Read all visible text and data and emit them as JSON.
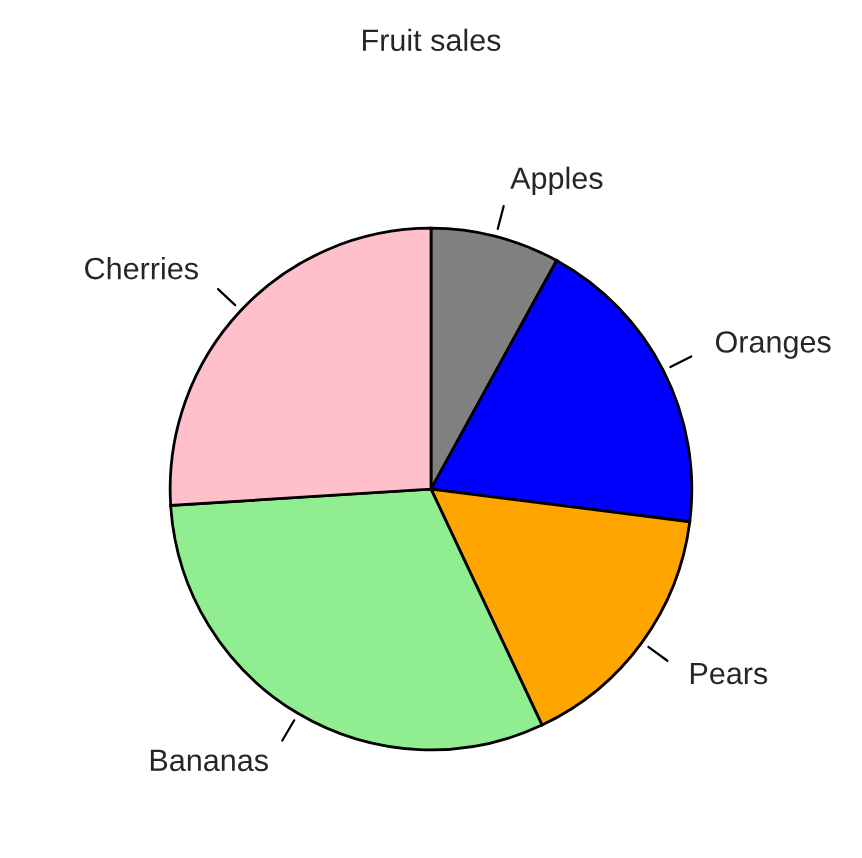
{
  "chart_data": {
    "type": "pie",
    "title": "Fruit sales",
    "categories": [
      "Apples",
      "Oranges",
      "Pears",
      "Bananas",
      "Cherries"
    ],
    "values": [
      8,
      19,
      16,
      31,
      26
    ],
    "colors": [
      "#808080",
      "#0000ff",
      "#ffa500",
      "#90ee90",
      "#ffc0cb"
    ]
  }
}
